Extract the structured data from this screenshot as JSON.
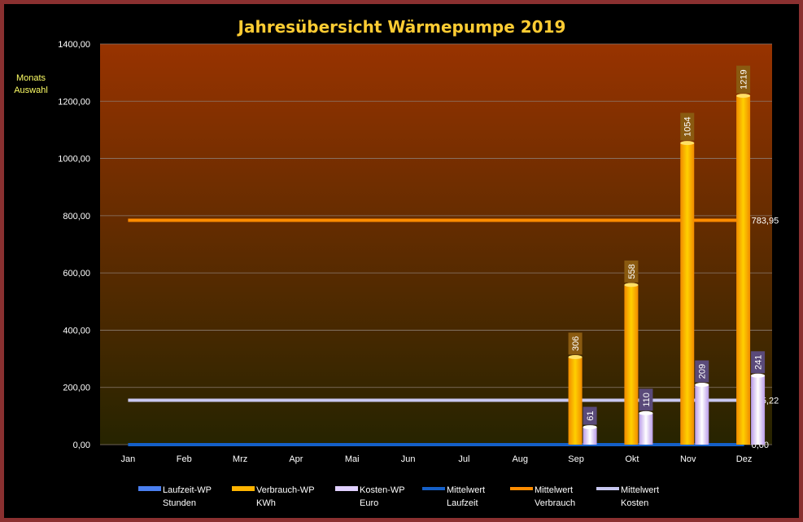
{
  "side_label": {
    "line1": "Monats",
    "line2": "Auswahl"
  },
  "chart_data": {
    "type": "bar",
    "title": "Jahresübersicht Wärmepumpe  2019",
    "categories": [
      "Jan",
      "Feb",
      "Mrz",
      "Apr",
      "Mai",
      "Jun",
      "Jul",
      "Aug",
      "Sep",
      "Okt",
      "Nov",
      "Dez"
    ],
    "ylim": [
      0,
      1400
    ],
    "yticks": [
      "0,00",
      "200,00",
      "400,00",
      "600,00",
      "800,00",
      "1000,00",
      "1200,00",
      "1400,00"
    ],
    "grid": true,
    "legend_position": "bottom",
    "series": [
      {
        "name": "Laufzeit-WP",
        "unit": "Stunden",
        "color": "#4a7ff0",
        "values": [
          0,
          0,
          0,
          0,
          0,
          0,
          0,
          0,
          0,
          0,
          0,
          0
        ],
        "labels": []
      },
      {
        "name": "Verbrauch-WP",
        "unit": "KWh",
        "color": "#ffb400",
        "values": [
          0,
          0,
          0,
          0,
          0,
          0,
          0,
          0,
          306,
          558,
          1054,
          1219
        ],
        "labels": [
          "",
          "",
          "",
          "",
          "",
          "",
          "",
          "",
          "306",
          "558",
          "1054",
          "1219"
        ]
      },
      {
        "name": "Kosten-WP",
        "unit": "Euro",
        "color": "#e0d0ff",
        "values": [
          0,
          0,
          0,
          0,
          0,
          0,
          0,
          0,
          61,
          110,
          209,
          241
        ],
        "labels": [
          "",
          "",
          "",
          "",
          "",
          "",
          "",
          "",
          "61",
          "110",
          "209",
          "241"
        ]
      }
    ],
    "averages": [
      {
        "name": "Mittelwert",
        "unit": "Laufzeit",
        "color": "#1560c8",
        "value": 0,
        "label": "0,00"
      },
      {
        "name": "Mittelwert",
        "unit": "Verbrauch",
        "color": "#ff8c00",
        "value": 783.95,
        "label": "783,95"
      },
      {
        "name": "Mittelwert",
        "unit": "Kosten",
        "color": "#c8c8f0",
        "value": 155.22,
        "label": "155,22"
      }
    ]
  }
}
